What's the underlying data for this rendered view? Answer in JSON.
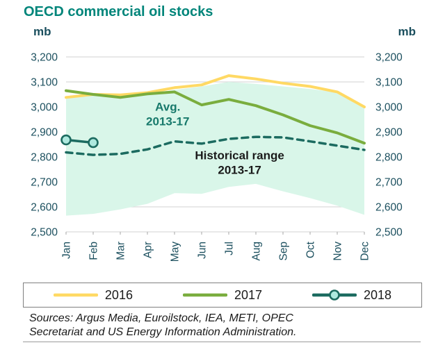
{
  "title": "OECD commercial oil stocks",
  "unit_left": "mb",
  "unit_right": "mb",
  "colors": {
    "title": "#00857a",
    "axis_text": "#1b4f5e",
    "grid": "#d9d9d9",
    "tick": "#a6a6a6",
    "band": "#d9f6e9",
    "legend_border": "#7f7f7f",
    "sources_text": "#1a1a1a"
  },
  "chart_data": {
    "type": "line",
    "title": "OECD commercial oil stocks",
    "ylabel": "mb",
    "ylim": [
      2500,
      3200
    ],
    "ytick_step": 100,
    "grid": true,
    "legend_position": "bottom",
    "categories": [
      "Jan",
      "Feb",
      "Mar",
      "Apr",
      "May",
      "Jun",
      "Jul",
      "Aug",
      "Sep",
      "Oct",
      "Nov",
      "Dec"
    ],
    "yticks": [
      {
        "value": 2500,
        "label": "2,500"
      },
      {
        "value": 2600,
        "label": "2,600"
      },
      {
        "value": 2700,
        "label": "2,700"
      },
      {
        "value": 2800,
        "label": "2,800"
      },
      {
        "value": 2900,
        "label": "2,900"
      },
      {
        "value": 3000,
        "label": "3,000"
      },
      {
        "value": 3100,
        "label": "3,100"
      },
      {
        "value": 3200,
        "label": "3,200"
      }
    ],
    "band": {
      "name": "Historical range 2013-17",
      "color": "#d9f6e9",
      "upper": [
        3040,
        3045,
        3040,
        3052,
        3068,
        3082,
        3100,
        3092,
        3082,
        3072,
        3058,
        3000
      ],
      "lower": [
        2565,
        2572,
        2590,
        2612,
        2655,
        2652,
        2680,
        2692,
        2662,
        2635,
        2605,
        2568
      ]
    },
    "series": [
      {
        "name": "2016",
        "color": "#ffd964",
        "width": 4,
        "values": [
          3038,
          3050,
          3048,
          3057,
          3077,
          3088,
          3125,
          3112,
          3095,
          3082,
          3060,
          3000
        ]
      },
      {
        "name": "2017",
        "color": "#7aad3e",
        "width": 4,
        "values": [
          3065,
          3050,
          3038,
          3052,
          3060,
          3008,
          3030,
          3005,
          2968,
          2925,
          2896,
          2855
        ]
      },
      {
        "name": "Avg. 2013-17",
        "color": "#1c6b60",
        "width": 3.5,
        "dash": "9 7",
        "values": [
          2818,
          2808,
          2812,
          2830,
          2862,
          2853,
          2872,
          2880,
          2878,
          2862,
          2845,
          2828
        ]
      },
      {
        "name": "2018",
        "color": "#1c6b60",
        "width": 3.5,
        "marker": true,
        "marker_fill": "#aee9de",
        "values": [
          2868,
          2857,
          null,
          null,
          null,
          null,
          null,
          null,
          null,
          null,
          null,
          null
        ]
      }
    ],
    "annotations": [
      {
        "lines": [
          "Avg.",
          "2013-17"
        ],
        "x": 3.75,
        "y": 2985,
        "color": "#17796b"
      },
      {
        "lines": [
          "Historical range",
          "2013-17"
        ],
        "x": 6.4,
        "y": 2790,
        "color": "#1a1a1a"
      }
    ]
  },
  "legend": [
    {
      "label": "2016",
      "series": 0
    },
    {
      "label": "2017",
      "series": 1
    },
    {
      "label": "2018",
      "series": 3
    }
  ],
  "sources": {
    "line1": "Sources: Argus Media, Euroilstock, IEA, METI, OPEC",
    "line2": "Secretariat and US Energy Information Administration."
  }
}
